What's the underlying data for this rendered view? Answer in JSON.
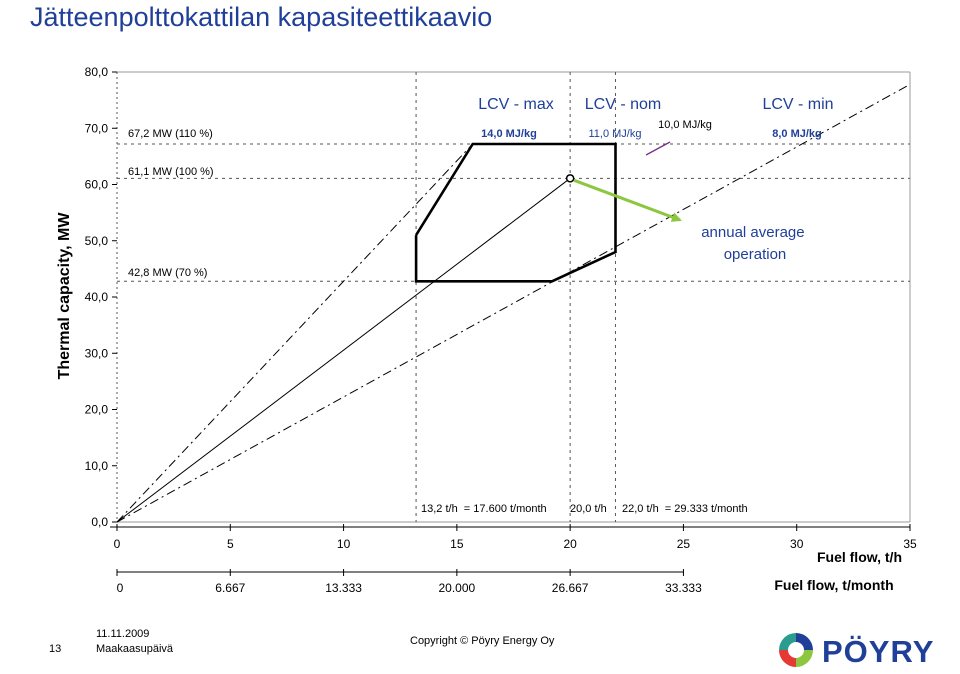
{
  "title": "Jätteenpolttokattilan kapasiteettikaavio",
  "chart_data": {
    "type": "line",
    "ylabel": "Thermal capacity, MW",
    "xlabel": "Fuel flow, t/h",
    "xlabel2": "Fuel flow, t/month",
    "xlim": [
      0,
      35
    ],
    "ylim": [
      0,
      80
    ],
    "x_ticks": [
      0,
      5,
      10,
      15,
      20,
      25,
      30,
      35
    ],
    "x_tick_labels": [
      "0",
      "5",
      "10",
      "15",
      "20",
      "25",
      "30",
      "35"
    ],
    "y_ticks": [
      0,
      10,
      20,
      30,
      40,
      50,
      60,
      70,
      80
    ],
    "y_tick_labels": [
      "0,0",
      "10,0",
      "20,0",
      "30,0",
      "40,0",
      "50,0",
      "60,0",
      "70,0",
      "80,0"
    ],
    "month_ticks": [
      0,
      5,
      10,
      15,
      20,
      25
    ],
    "month_tick_labels": [
      "0",
      "6.667",
      "13.333",
      "20.000",
      "26.667",
      "33.333"
    ],
    "h_lines": [
      {
        "y": 67.2,
        "label": "67,2 MW (110 %)"
      },
      {
        "y": 61.1,
        "label": "61,1 MW (100 %)"
      },
      {
        "y": 42.8,
        "label": "42,8 MW (70 %)"
      }
    ],
    "v_lines": [
      {
        "x": 13.2,
        "label": "13,2 t/h  = 17.600 t/month"
      },
      {
        "x": 20.0,
        "label": "20,0 t/h"
      },
      {
        "x": 22.0,
        "label": "22,0 t/h  = 29.333 t/month"
      }
    ],
    "lcv_lines": [
      {
        "name": "LCV - max",
        "value": "14,0 MJ/kg",
        "end": [
          15.7,
          67.2
        ],
        "style": "dashdot"
      },
      {
        "name": "LCV - nom",
        "value": "11,0 MJ/kg",
        "end": [
          20.0,
          61.1
        ],
        "style": "solid"
      },
      {
        "name": "LCV - min",
        "value": "8,0 MJ/kg",
        "end": [
          35.0,
          77.8
        ],
        "style": "dashdot"
      }
    ],
    "extra_lcv_label": "10,0 MJ/kg",
    "operating_envelope": [
      [
        13.2,
        51.0
      ],
      [
        13.2,
        42.8
      ],
      [
        19.2,
        42.8
      ],
      [
        22.0,
        48.0
      ],
      [
        22.0,
        67.2
      ],
      [
        15.7,
        67.2
      ],
      [
        13.2,
        51.0
      ]
    ],
    "annual_average_point": {
      "x": 20.0,
      "y": 61.1,
      "label": "annual average operation"
    },
    "colors": {
      "lcv_heading": "#1f3f99",
      "lcv_value": "#1f3f99",
      "arrow": "#8dc63f",
      "annotation": "#1f3f99",
      "purple": "#7b2d8e"
    }
  },
  "footer": {
    "page_number": "13",
    "date": "11.11.2009",
    "location": "Maakaasupäivä",
    "copyright": "Copyright © Pöyry Energy Oy",
    "logo_text": "PÖYRY"
  }
}
